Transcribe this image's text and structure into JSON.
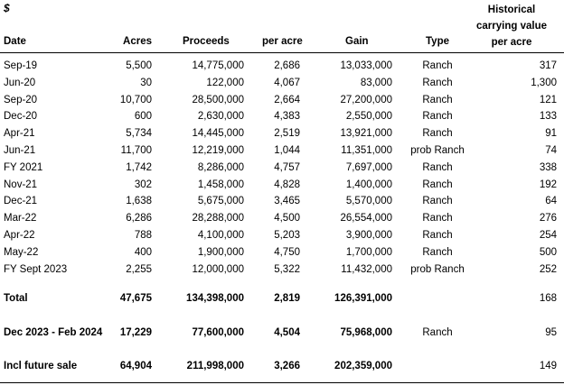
{
  "currency_symbol": "$",
  "headers": {
    "date": "Date",
    "acres": "Acres",
    "proceeds": "Proceeds",
    "per_acre": "per acre",
    "gain": "Gain",
    "type": "Type",
    "hist_line1": "Historical",
    "hist_line2": "carrying value",
    "hist_line3": "per acre"
  },
  "rows": [
    {
      "date": "Sep-19",
      "acres": "5,500",
      "proceeds": "14,775,000",
      "per_acre": "2,686",
      "gain": "13,033,000",
      "type": "Ranch",
      "hist": "317"
    },
    {
      "date": "Jun-20",
      "acres": "30",
      "proceeds": "122,000",
      "per_acre": "4,067",
      "gain": "83,000",
      "type": "Ranch",
      "hist": "1,300"
    },
    {
      "date": "Sep-20",
      "acres": "10,700",
      "proceeds": "28,500,000",
      "per_acre": "2,664",
      "gain": "27,200,000",
      "type": "Ranch",
      "hist": "121"
    },
    {
      "date": "Dec-20",
      "acres": "600",
      "proceeds": "2,630,000",
      "per_acre": "4,383",
      "gain": "2,550,000",
      "type": "Ranch",
      "hist": "133"
    },
    {
      "date": "Apr-21",
      "acres": "5,734",
      "proceeds": "14,445,000",
      "per_acre": "2,519",
      "gain": "13,921,000",
      "type": "Ranch",
      "hist": "91"
    },
    {
      "date": "Jun-21",
      "acres": "11,700",
      "proceeds": "12,219,000",
      "per_acre": "1,044",
      "gain": "11,351,000",
      "type": "prob Ranch",
      "hist": "74"
    },
    {
      "date": "FY 2021",
      "acres": "1,742",
      "proceeds": "8,286,000",
      "per_acre": "4,757",
      "gain": "7,697,000",
      "type": "Ranch",
      "hist": "338"
    },
    {
      "date": "Nov-21",
      "acres": "302",
      "proceeds": "1,458,000",
      "per_acre": "4,828",
      "gain": "1,400,000",
      "type": "Ranch",
      "hist": "192"
    },
    {
      "date": "Dec-21",
      "acres": "1,638",
      "proceeds": "5,675,000",
      "per_acre": "3,465",
      "gain": "5,570,000",
      "type": "Ranch",
      "hist": "64"
    },
    {
      "date": "Mar-22",
      "acres": "6,286",
      "proceeds": "28,288,000",
      "per_acre": "4,500",
      "gain": "26,554,000",
      "type": "Ranch",
      "hist": "276"
    },
    {
      "date": "Apr-22",
      "acres": "788",
      "proceeds": "4,100,000",
      "per_acre": "5,203",
      "gain": "3,900,000",
      "type": "Ranch",
      "hist": "254"
    },
    {
      "date": "May-22",
      "acres": "400",
      "proceeds": "1,900,000",
      "per_acre": "4,750",
      "gain": "1,700,000",
      "type": "Ranch",
      "hist": "500"
    },
    {
      "date": "FY Sept 2023",
      "acres": "2,255",
      "proceeds": "12,000,000",
      "per_acre": "5,322",
      "gain": "11,432,000",
      "type": "prob Ranch",
      "hist": "252"
    }
  ],
  "total": {
    "date": "Total",
    "acres": "47,675",
    "proceeds": "134,398,000",
    "per_acre": "2,819",
    "gain": "126,391,000",
    "type": "",
    "hist": "168"
  },
  "future": {
    "date": "Dec 2023 - Feb 2024",
    "acres": "17,229",
    "proceeds": "77,600,000",
    "per_acre": "4,504",
    "gain": "75,968,000",
    "type": "Ranch",
    "hist": "95"
  },
  "incl_future": {
    "date": "Incl future sale",
    "acres": "64,904",
    "proceeds": "211,998,000",
    "per_acre": "3,266",
    "gain": "202,359,000",
    "type": "",
    "hist": "149"
  }
}
